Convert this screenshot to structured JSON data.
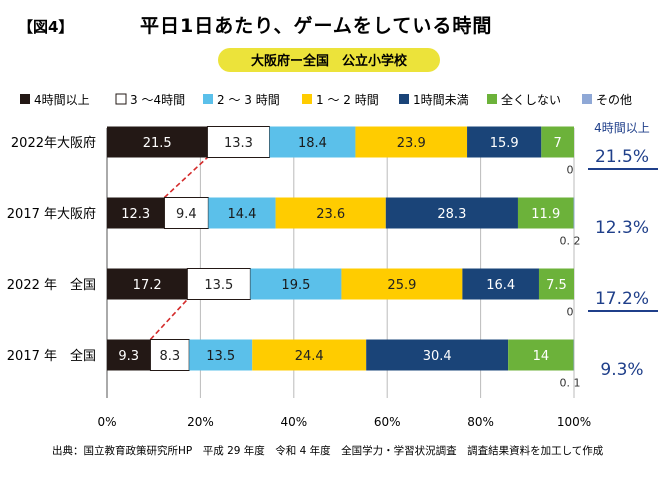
{
  "figure_label": "【図4】",
  "title": "平日1日あたり、ゲームをしている時間",
  "subtitle": "大阪府ー全国　公立小学校",
  "source": "出典：国立教育政策研究所HP　平成 29 年度　令和 4 年度　全国学力・学習状況調査　調査結果資料を加工して作成",
  "colors": {
    "s0": "#231815",
    "s1": "#ffffff",
    "s2": "#5bc0ea",
    "s3": "#ffcc00",
    "s4": "#1a4478",
    "s5": "#6cb23a",
    "s6": "#8fa8d6",
    "accent": "#1f3f8a",
    "highlight": "#ece33a",
    "connector": "#d42b2b"
  },
  "chart_data": {
    "type": "bar",
    "orientation": "horizontal",
    "stacked": true,
    "title": "平日1日あたり、ゲームをしている時間",
    "categories": [
      "2022年大阪府",
      "2017 年大阪府",
      "2022 年　全国",
      "2017 年　全国"
    ],
    "series": [
      {
        "name": "4時間以上",
        "values": [
          21.5,
          12.3,
          17.2,
          9.3
        ],
        "labels": [
          "21.5",
          "12.3",
          "17.2",
          "9.3"
        ]
      },
      {
        "name": "3 ～4時間",
        "values": [
          13.3,
          9.4,
          13.5,
          8.3
        ],
        "labels": [
          "13.3",
          "9.4",
          "13.5",
          "8.3"
        ]
      },
      {
        "name": "2 ～ 3 時間",
        "values": [
          18.4,
          14.4,
          19.5,
          13.5
        ],
        "labels": [
          "18.4",
          "14.4",
          "19.5",
          "13.5"
        ]
      },
      {
        "name": "1 ～ 2 時間",
        "values": [
          23.9,
          23.6,
          25.9,
          24.4
        ],
        "labels": [
          "23.9",
          "23.6",
          "25.9",
          "24.4"
        ]
      },
      {
        "name": "1時間未満",
        "values": [
          15.9,
          28.3,
          16.4,
          30.4
        ],
        "labels": [
          "15.9",
          "28.3",
          "16.4",
          "30.4"
        ]
      },
      {
        "name": "全くしない",
        "values": [
          7,
          11.9,
          7.5,
          14
        ],
        "labels": [
          "7",
          "11.9",
          "7.5",
          "14"
        ]
      },
      {
        "name": "その他",
        "values": [
          0,
          0.2,
          0,
          0.1
        ],
        "labels": [
          "0",
          "0. 2",
          "0",
          "0. 1"
        ]
      }
    ],
    "xlim": [
      0,
      100
    ],
    "x_ticks": [
      "0%",
      "20%",
      "40%",
      "60%",
      "80%",
      "100%"
    ],
    "side_header": "4時間以上",
    "side_values": [
      "21.5%",
      "12.3%",
      "17.2%",
      "9.3%"
    ]
  }
}
